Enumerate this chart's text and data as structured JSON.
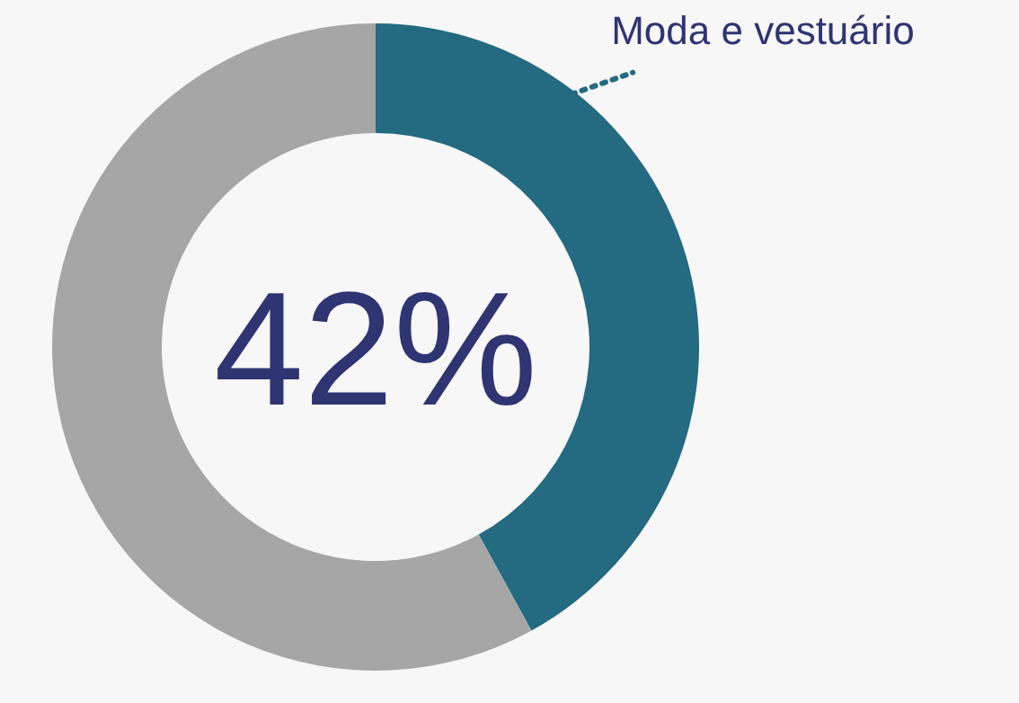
{
  "chart_data": {
    "type": "donut",
    "categories": [
      "Moda e vestuário",
      null
    ],
    "values": [
      42,
      58
    ],
    "colors": [
      "#246a80",
      "#a6a6a6"
    ],
    "annotations": [
      "42%"
    ]
  }
}
